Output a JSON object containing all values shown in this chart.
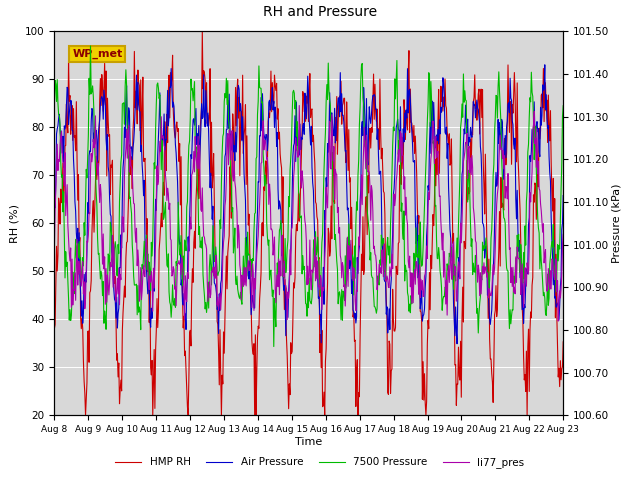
{
  "title": "RH and Pressure",
  "xlabel": "Time",
  "ylabel_left": "RH (%)",
  "ylabel_right": "Pressure (kPa)",
  "ylim_left": [
    20,
    100
  ],
  "ylim_right": [
    100.6,
    101.5
  ],
  "x_ticks_labels": [
    "Aug 8",
    "Aug 9",
    "Aug 10",
    "Aug 11",
    "Aug 12",
    "Aug 13",
    "Aug 14",
    "Aug 15",
    "Aug 16",
    "Aug 17",
    "Aug 18",
    "Aug 19",
    "Aug 20",
    "Aug 21",
    "Aug 22",
    "Aug 23"
  ],
  "wp_met_label": "WP_met",
  "legend": [
    "HMP RH",
    "Air Pressure",
    "7500 Pressure",
    "li77_pres"
  ],
  "line_colors": [
    "#cc0000",
    "#0000cc",
    "#00bb00",
    "#aa00aa"
  ],
  "bg_color": "#d8d8d8",
  "fig_color": "#ffffff",
  "seed": 42
}
